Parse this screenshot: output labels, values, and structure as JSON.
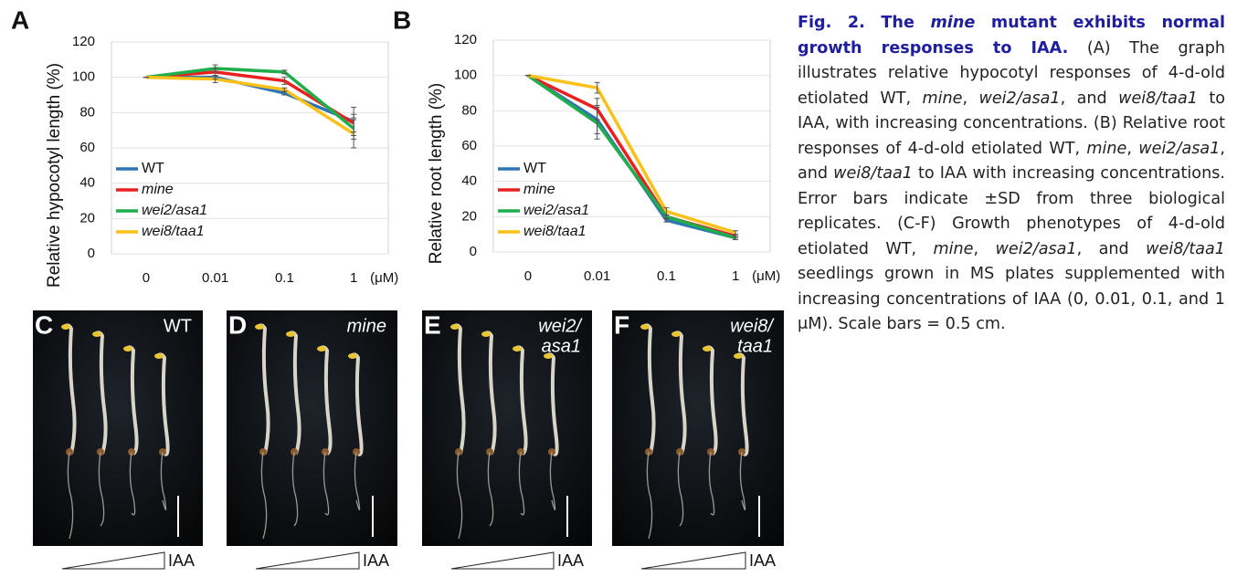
{
  "chart_data": [
    {
      "type": "line",
      "panel": "A",
      "y_label": "Relative hypocotyl length (%)",
      "x_label": "(μM)",
      "categories": [
        "0",
        "0.01",
        "0.1",
        "1"
      ],
      "ylim": [
        0,
        120
      ],
      "yticks": [
        0,
        20,
        40,
        60,
        80,
        100,
        120
      ],
      "grid": true,
      "series": [
        {
          "name": "WT",
          "color": "#2e75b6",
          "values": [
            100,
            100,
            91,
            75
          ],
          "errors": [
            0,
            1,
            1,
            8
          ]
        },
        {
          "name": "mine",
          "color": "#e8201f",
          "values": [
            100,
            103,
            98,
            74
          ],
          "errors": [
            0,
            2,
            2,
            5
          ]
        },
        {
          "name": "wei2/asa1",
          "color": "#1fae4b",
          "values": [
            100,
            105,
            103,
            71
          ],
          "errors": [
            0,
            2,
            1,
            6
          ]
        },
        {
          "name": "wei8/taa1",
          "color": "#fbc11a",
          "values": [
            100,
            99,
            93,
            68
          ],
          "errors": [
            0,
            2,
            1,
            8
          ]
        }
      ]
    },
    {
      "type": "line",
      "panel": "B",
      "y_label": "Relative root length (%)",
      "x_label": "(μM)",
      "categories": [
        "0",
        "0.01",
        "0.1",
        "1"
      ],
      "ylim": [
        0,
        120
      ],
      "yticks": [
        0,
        20,
        40,
        60,
        80,
        100,
        120
      ],
      "grid": true,
      "series": [
        {
          "name": "WT",
          "color": "#2e75b6",
          "values": [
            100,
            75,
            18,
            8
          ],
          "errors": [
            0,
            8,
            1,
            1
          ]
        },
        {
          "name": "mine",
          "color": "#e8201f",
          "values": [
            100,
            81,
            20,
            9
          ],
          "errors": [
            0,
            6,
            1,
            1
          ]
        },
        {
          "name": "wei2/asa1",
          "color": "#1fae4b",
          "values": [
            100,
            73,
            20,
            8
          ],
          "errors": [
            0,
            9,
            1,
            1
          ]
        },
        {
          "name": "wei8/taa1",
          "color": "#fbc11a",
          "values": [
            100,
            93,
            23,
            11
          ],
          "errors": [
            0,
            3,
            2,
            1
          ]
        }
      ]
    }
  ],
  "panels": [
    {
      "label": "C",
      "title": [
        "WT"
      ],
      "treatment": "IAA"
    },
    {
      "label": "D",
      "title": [
        "mine"
      ],
      "treatment": "IAA"
    },
    {
      "label": "E",
      "title": [
        "wei2/",
        "asa1"
      ],
      "treatment": "IAA"
    },
    {
      "label": "F",
      "title": [
        "wei8/",
        "taa1"
      ],
      "treatment": "IAA"
    }
  ],
  "caption": [
    {
      "text": "Fig. 2. The ",
      "bold": true
    },
    {
      "text": "mine",
      "bold": true,
      "italic": true
    },
    {
      "text": " mutant exhibits normal growth responses to IAA.",
      "bold": true
    },
    {
      "text": " (A) The graph illustrates relative hypocotyl responses of 4-d-old etiolated WT, "
    },
    {
      "text": "mine",
      "italic": true
    },
    {
      "text": ", "
    },
    {
      "text": "wei2/asa1",
      "italic": true
    },
    {
      "text": ", and "
    },
    {
      "text": "wei8/taa1",
      "italic": true
    },
    {
      "text": " to IAA, with increasing concentrations. (B) Relative root responses of 4-d-old etiolated WT, "
    },
    {
      "text": "mine",
      "italic": true
    },
    {
      "text": ", "
    },
    {
      "text": "wei2/asa1",
      "italic": true
    },
    {
      "text": ", and "
    },
    {
      "text": "wei8/taa1",
      "italic": true
    },
    {
      "text": " to IAA with increasing concentrations. Error bars indicate ±SD from three biological replicates. (C-F) Growth phenotypes of 4-d-old etiolated WT, "
    },
    {
      "text": "mine",
      "italic": true
    },
    {
      "text": ", "
    },
    {
      "text": "wei2/asa1",
      "italic": true
    },
    {
      "text": ", and "
    },
    {
      "text": "wei8/taa1",
      "italic": true
    },
    {
      "text": " seedlings grown in MS plates supplemented with increasing concentrations of IAA (0, 0.01, 0.1, and 1 μM). Scale bars = 0.5 cm."
    }
  ]
}
